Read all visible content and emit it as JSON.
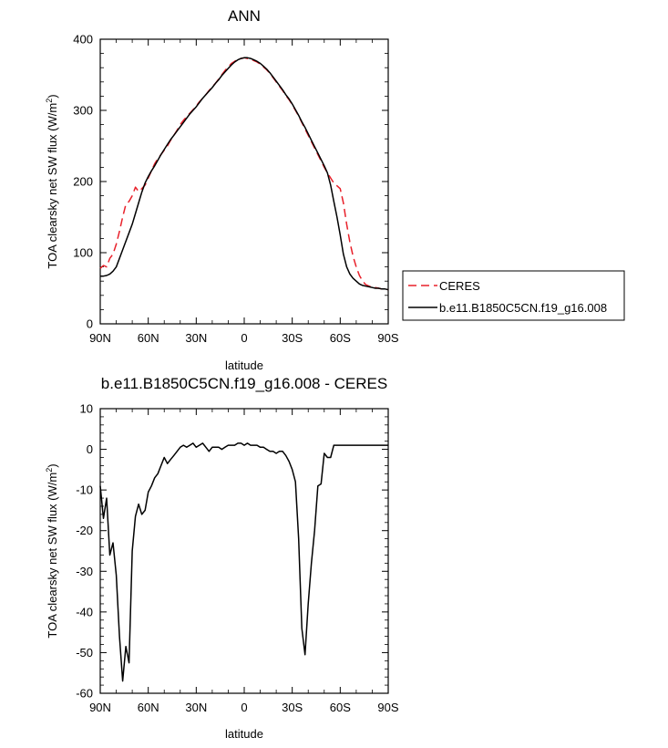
{
  "chart_data": [
    {
      "type": "line",
      "title": "ANN",
      "xlabel": "latitude",
      "ylabel": "TOA clearsky net SW flux (W/m",
      "ylabel_sup": "2",
      "ylabel_tail": ")",
      "xlim": [
        -90,
        90
      ],
      "ylim": [
        0,
        400
      ],
      "x_ticks": [
        -90,
        -60,
        -30,
        0,
        30,
        60,
        90
      ],
      "x_tick_labels": [
        "90N",
        "60N",
        "30N",
        "0",
        "30S",
        "60S",
        "90S"
      ],
      "y_ticks": [
        0,
        100,
        200,
        300,
        400
      ],
      "y_tick_labels": [
        "0",
        "100",
        "200",
        "300",
        "400"
      ],
      "grid": false,
      "legend_position": "right",
      "series": [
        {
          "name": "CERES",
          "color": "#e8202a",
          "dash": "dashed",
          "x": [
            -90,
            -88,
            -86,
            -84,
            -82,
            -80,
            -78,
            -76,
            -74,
            -72,
            -70,
            -68,
            -66,
            -64,
            -62,
            -60,
            -58,
            -56,
            -54,
            -52,
            -50,
            -48,
            -46,
            -44,
            -42,
            -40,
            -38,
            -36,
            -34,
            -32,
            -30,
            -28,
            -26,
            -24,
            -22,
            -20,
            -18,
            -16,
            -14,
            -12,
            -10,
            -8,
            -6,
            -4,
            -2,
            0,
            2,
            4,
            6,
            8,
            10,
            12,
            14,
            16,
            18,
            20,
            22,
            24,
            26,
            28,
            30,
            32,
            34,
            36,
            38,
            40,
            42,
            44,
            46,
            48,
            50,
            52,
            54,
            56,
            58,
            60,
            62,
            64,
            66,
            68,
            70,
            72,
            74,
            76,
            78,
            80,
            82,
            84,
            86,
            88,
            90
          ],
          "y": [
            78,
            82,
            80,
            92,
            98,
            112,
            130,
            150,
            168,
            172,
            180,
            192,
            186,
            190,
            195,
            205,
            215,
            225,
            232,
            238,
            244,
            250,
            258,
            265,
            272,
            280,
            286,
            291,
            296,
            301,
            306,
            312,
            317,
            322,
            328,
            333,
            338,
            344,
            350,
            356,
            361,
            366,
            369,
            372,
            373,
            374,
            373,
            372,
            370,
            368,
            365,
            361,
            357,
            352,
            346,
            340,
            334,
            328,
            321,
            315,
            308,
            300,
            292,
            283,
            274,
            265,
            256,
            247,
            238,
            229,
            220,
            212,
            205,
            198,
            194,
            190,
            170,
            140,
            115,
            95,
            80,
            68,
            60,
            55,
            53,
            52,
            51,
            50,
            49,
            49,
            48
          ]
        },
        {
          "name": "b.e11.B1850C5CN.f19_g16.008",
          "color": "#000000",
          "dash": "solid",
          "x": [
            -90,
            -88,
            -86,
            -84,
            -82,
            -80,
            -78,
            -76,
            -74,
            -72,
            -70,
            -68,
            -66,
            -64,
            -62,
            -60,
            -58,
            -56,
            -54,
            -52,
            -50,
            -48,
            -46,
            -44,
            -42,
            -40,
            -38,
            -36,
            -34,
            -32,
            -30,
            -28,
            -26,
            -24,
            -22,
            -20,
            -18,
            -16,
            -14,
            -12,
            -10,
            -8,
            -6,
            -4,
            -2,
            0,
            2,
            4,
            6,
            8,
            10,
            12,
            14,
            16,
            18,
            20,
            22,
            24,
            26,
            28,
            30,
            32,
            34,
            36,
            38,
            40,
            42,
            44,
            46,
            48,
            50,
            52,
            54,
            56,
            58,
            60,
            62,
            64,
            66,
            68,
            70,
            72,
            74,
            76,
            78,
            80,
            82,
            84,
            86,
            88,
            90
          ],
          "y": [
            67,
            67,
            68,
            70,
            74,
            80,
            92,
            104,
            116,
            128,
            140,
            155,
            170,
            185,
            198,
            207,
            215,
            222,
            230,
            238,
            245,
            252,
            259,
            265,
            271,
            277,
            283,
            289,
            295,
            300,
            305,
            311,
            317,
            322,
            327,
            332,
            338,
            343,
            349,
            354,
            359,
            364,
            368,
            371,
            373,
            374,
            374,
            373,
            371,
            369,
            366,
            362,
            358,
            353,
            347,
            341,
            335,
            329,
            322,
            316,
            309,
            301,
            293,
            284,
            276,
            267,
            258,
            249,
            240,
            231,
            222,
            212,
            195,
            172,
            150,
            125,
            98,
            80,
            70,
            64,
            60,
            56,
            54,
            53,
            52,
            51,
            50,
            50,
            49,
            49,
            48
          ]
        }
      ]
    },
    {
      "type": "line",
      "title": "b.e11.B1850C5CN.f19_g16.008 - CERES",
      "xlabel": "latitude",
      "ylabel": "TOA clearsky net SW flux (W/m",
      "ylabel_sup": "2",
      "ylabel_tail": ")",
      "xlim": [
        -90,
        90
      ],
      "ylim": [
        -60,
        10
      ],
      "x_ticks": [
        -90,
        -60,
        -30,
        0,
        30,
        60,
        90
      ],
      "x_tick_labels": [
        "90N",
        "60N",
        "30N",
        "0",
        "30S",
        "60S",
        "90S"
      ],
      "y_ticks": [
        -60,
        -50,
        -40,
        -30,
        -20,
        -10,
        0,
        10
      ],
      "y_tick_labels": [
        "-60",
        "-50",
        "-40",
        "-30",
        "-20",
        "-10",
        "0",
        "10"
      ],
      "grid": false,
      "series": [
        {
          "color": "#000000",
          "dash": "solid",
          "x": [
            -90,
            -88,
            -86,
            -84,
            -82,
            -80,
            -78,
            -76,
            -74,
            -72,
            -70,
            -68,
            -66,
            -64,
            -62,
            -60,
            -58,
            -56,
            -54,
            -52,
            -50,
            -48,
            -46,
            -44,
            -42,
            -40,
            -38,
            -36,
            -34,
            -32,
            -30,
            -28,
            -26,
            -24,
            -22,
            -20,
            -18,
            -16,
            -14,
            -12,
            -10,
            -8,
            -6,
            -4,
            -2,
            0,
            2,
            4,
            6,
            8,
            10,
            12,
            14,
            16,
            18,
            20,
            22,
            24,
            26,
            28,
            30,
            32,
            34,
            36,
            38,
            40,
            42,
            44,
            46,
            48,
            50,
            52,
            54,
            56,
            58,
            60,
            62,
            64,
            66,
            68,
            70,
            72,
            74,
            76,
            78,
            80,
            82,
            84,
            86,
            88,
            90
          ],
          "y": [
            -9,
            -17,
            -12,
            -26,
            -23,
            -31,
            -46,
            -57,
            -48.5,
            -52.5,
            -25,
            -16.5,
            -13.5,
            -16,
            -15,
            -10.5,
            -9,
            -7,
            -6,
            -4,
            -2,
            -3.5,
            -2.5,
            -1.5,
            -0.5,
            0.5,
            1,
            0.5,
            1,
            1.5,
            0.5,
            1,
            1.5,
            0.5,
            -0.5,
            0.5,
            0.5,
            0.5,
            0,
            0.5,
            1,
            1,
            1,
            1.5,
            1.5,
            1,
            1.5,
            1,
            1,
            1,
            0.5,
            0.5,
            0,
            -0.5,
            -0.5,
            -1,
            -0.5,
            -0.5,
            -1.5,
            -3,
            -5,
            -8,
            -22,
            -44,
            -50.5,
            -38,
            -28,
            -20,
            -9,
            -8.5,
            -1,
            -2,
            -2,
            1,
            1,
            1,
            1,
            1,
            1,
            1,
            1,
            1,
            1,
            1,
            1,
            1,
            1,
            1,
            1,
            1,
            1
          ]
        }
      ]
    }
  ]
}
